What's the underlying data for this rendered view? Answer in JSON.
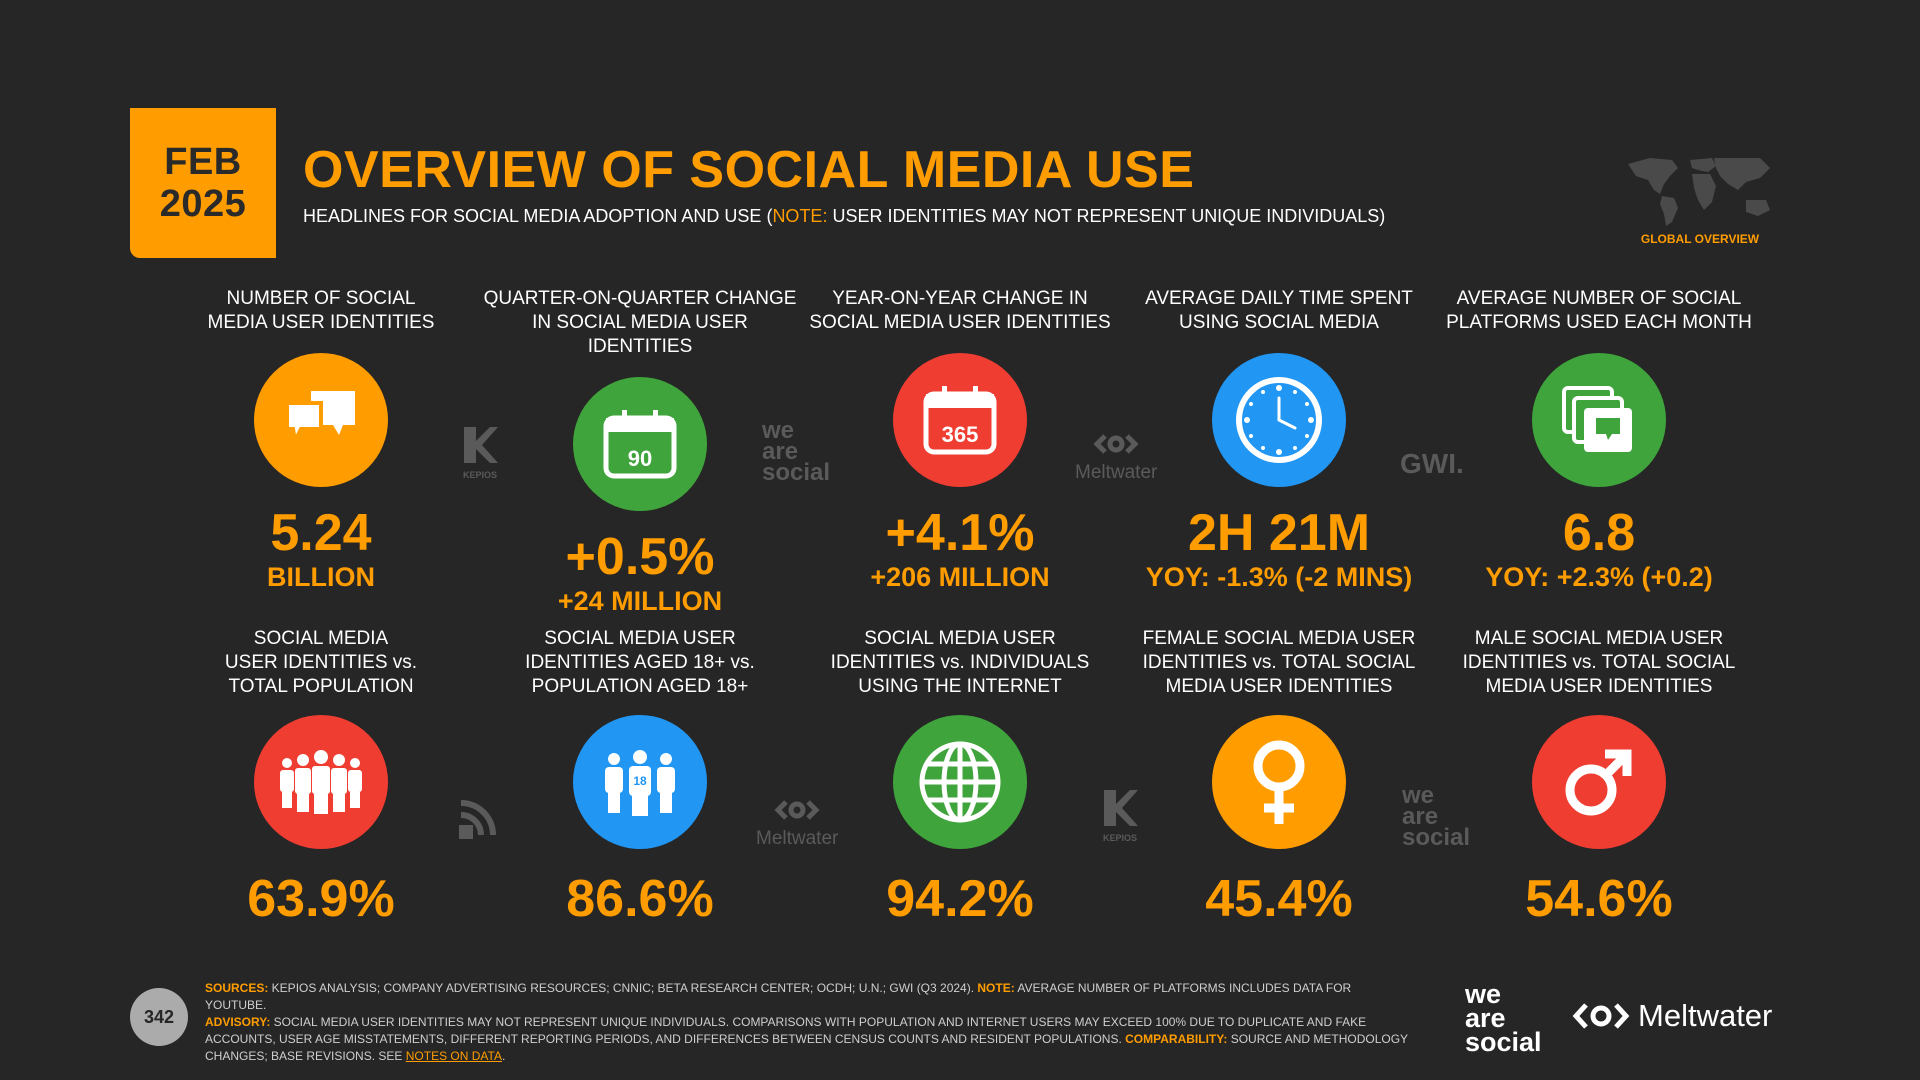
{
  "header": {
    "month": "FEB",
    "year": "2025",
    "title": "OVERVIEW OF SOCIAL MEDIA USE",
    "subtitle_pre": "HEADLINES FOR SOCIAL MEDIA ADOPTION AND USE (",
    "subtitle_note": "NOTE:",
    "subtitle_post": " USER IDENTITIES MAY NOT REPRESENT UNIQUE INDIVIDUALS)",
    "global_label": "GLOBAL OVERVIEW"
  },
  "row1": [
    {
      "label1": "NUMBER OF SOCIAL",
      "label2": "MEDIA USER IDENTITIES",
      "value": "5.24",
      "sub": "BILLION",
      "icon": "chat-bubbles-icon",
      "color": "#ff9d00"
    },
    {
      "label1": "QUARTER-ON-QUARTER CHANGE",
      "label2": "IN SOCIAL MEDIA USER IDENTITIES",
      "value": "+0.5%",
      "sub": "+24 MILLION",
      "icon": "calendar-90-icon",
      "icon_text": "90",
      "color": "#3fa43b"
    },
    {
      "label1": "YEAR-ON-YEAR CHANGE IN",
      "label2": "SOCIAL MEDIA USER IDENTITIES",
      "value": "+4.1%",
      "sub": "+206 MILLION",
      "icon": "calendar-365-icon",
      "icon_text": "365",
      "color": "#ef3d32"
    },
    {
      "label1": "AVERAGE DAILY TIME SPENT",
      "label2": "USING SOCIAL MEDIA",
      "value": "2H 21M",
      "sub": "YOY: -1.3% (-2 MINS)",
      "icon": "clock-icon",
      "color": "#2196f3"
    },
    {
      "label1": "AVERAGE NUMBER OF SOCIAL",
      "label2": "PLATFORMS USED EACH MONTH",
      "value": "6.8",
      "sub": "YOY: +2.3% (+0.2)",
      "icon": "stacked-windows-icon",
      "color": "#3fa43b"
    }
  ],
  "row2": [
    {
      "label1": "SOCIAL MEDIA",
      "label2": "USER IDENTITIES vs.",
      "label3": "TOTAL POPULATION",
      "value": "63.9%",
      "icon": "crowd-icon",
      "color": "#ef3d32"
    },
    {
      "label1": "SOCIAL MEDIA USER",
      "label2": "IDENTITIES AGED 18+ vs.",
      "label3": "POPULATION AGED 18+",
      "value": "86.6%",
      "icon": "adults-18-icon",
      "icon_text": "18",
      "color": "#2196f3"
    },
    {
      "label1": "SOCIAL MEDIA USER",
      "label2": "IDENTITIES vs. INDIVIDUALS",
      "label3": "USING THE INTERNET",
      "value": "94.2%",
      "icon": "globe-icon",
      "color": "#3fa43b"
    },
    {
      "label1": "FEMALE SOCIAL MEDIA USER",
      "label2": "IDENTITIES vs. TOTAL SOCIAL",
      "label3": "MEDIA USER IDENTITIES",
      "value": "45.4%",
      "icon": "female-symbol-icon",
      "color": "#ff9d00"
    },
    {
      "label1": "MALE SOCIAL MEDIA USER",
      "label2": "IDENTITIES vs. TOTAL SOCIAL",
      "label3": "MEDIA USER IDENTITIES",
      "value": "54.6%",
      "icon": "male-symbol-icon",
      "color": "#ef3d32"
    }
  ],
  "brands": {
    "kepios": "KEPIOS",
    "was1": "we",
    "was2": "are",
    "was3": "social",
    "meltwater": "Meltwater",
    "gwi": "GWI."
  },
  "footer": {
    "sources_k": "SOURCES:",
    "sources": " KEPIOS ANALYSIS; COMPANY ADVERTISING RESOURCES; CNNIC; BETA RESEARCH CENTER; OCDH; U.N.; GWI (Q3 2024). ",
    "note_k": "NOTE:",
    "note": " AVERAGE NUMBER OF PLATFORMS INCLUDES DATA FOR YOUTUBE.",
    "advisory_k": "ADVISORY:",
    "advisory": " SOCIAL MEDIA USER IDENTITIES MAY NOT REPRESENT UNIQUE INDIVIDUALS. COMPARISONS WITH POPULATION AND INTERNET USERS MAY EXCEED 100% DUE TO DUPLICATE AND FAKE ACCOUNTS, USER AGE MISSTATEMENTS, DIFFERENT REPORTING PERIODS, AND DIFFERENCES BETWEEN CENSUS COUNTS AND RESIDENT POPULATIONS. ",
    "comparability_k": "COMPARABILITY:",
    "comparability": " SOURCE AND METHODOLOGY CHANGES; BASE REVISIONS. SEE ",
    "link": "NOTES ON DATA",
    "end": ".",
    "page": "342"
  }
}
